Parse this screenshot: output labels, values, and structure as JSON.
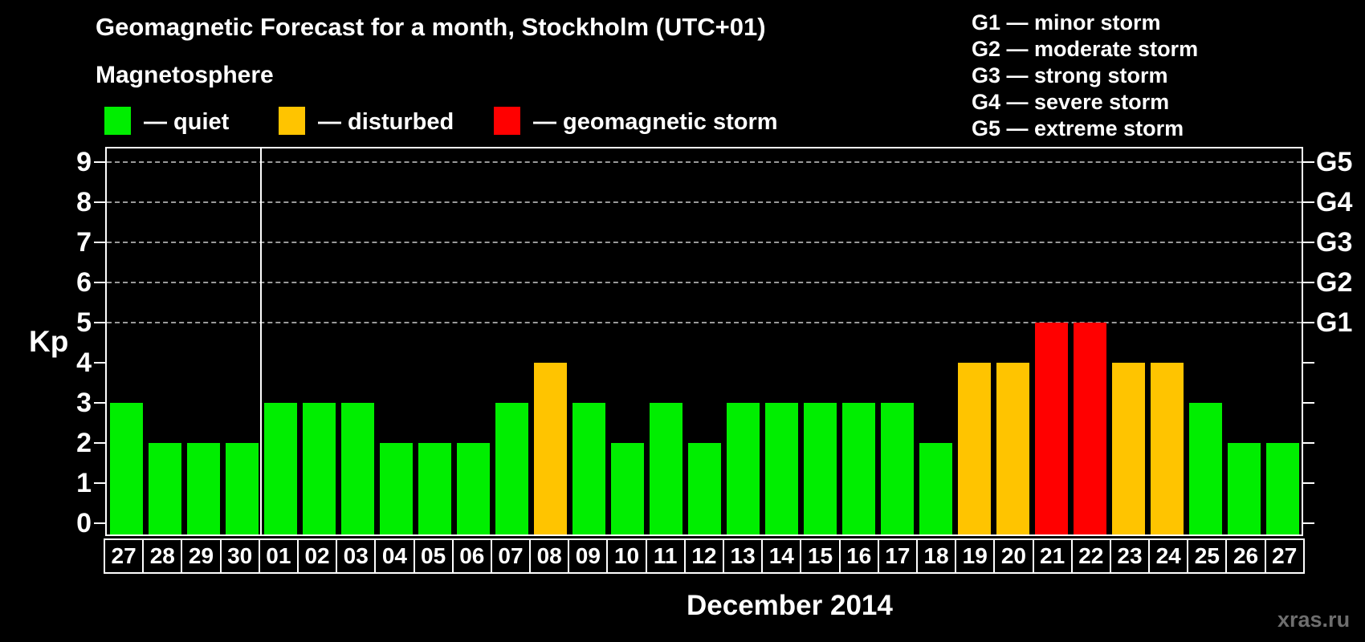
{
  "title": "Geomagnetic Forecast for a month, Stockholm (UTC+01)",
  "subtitle": "Magnetosphere",
  "legend": {
    "items": [
      {
        "key": "quiet",
        "label": "— quiet"
      },
      {
        "key": "disturbed",
        "label": "— disturbed"
      },
      {
        "key": "storm",
        "label": "— geomagnetic storm"
      }
    ]
  },
  "g_scale_legend": [
    "G1 — minor storm",
    "G2 — moderate storm",
    "G3 — strong storm",
    "G4 — severe storm",
    "G5 — extreme storm"
  ],
  "axes": {
    "y_label": "Kp",
    "y_ticks": [
      9,
      8,
      7,
      6,
      5,
      4,
      3,
      2,
      1,
      0
    ],
    "right_axis_labels": [
      {
        "kp": 9,
        "label": "G5"
      },
      {
        "kp": 8,
        "label": "G4"
      },
      {
        "kp": 7,
        "label": "G3"
      },
      {
        "kp": 6,
        "label": "G2"
      },
      {
        "kp": 5,
        "label": "G1"
      }
    ],
    "x_axis_title": "December 2014"
  },
  "watermark": "xras.ru",
  "colors": {
    "quiet": "#00ee00",
    "disturbed": "#ffc400",
    "storm": "#ff0000",
    "background": "#000000",
    "grid": "#9a9a9a",
    "axis": "#ffffff"
  },
  "chart_data": {
    "type": "bar",
    "title": "Geomagnetic Forecast for a month, Stockholm (UTC+01)",
    "xlabel": "December 2014",
    "ylabel": "Kp",
    "ylim": [
      0,
      9
    ],
    "grid": "dashed horizontal at Kp 5-9 only",
    "legend_position": "top-left",
    "categories": [
      "27",
      "28",
      "29",
      "30",
      "01",
      "02",
      "03",
      "04",
      "05",
      "06",
      "07",
      "08",
      "09",
      "10",
      "11",
      "12",
      "13",
      "14",
      "15",
      "16",
      "17",
      "18",
      "19",
      "20",
      "21",
      "22",
      "23",
      "24",
      "25",
      "26",
      "27"
    ],
    "values": [
      3,
      2,
      2,
      2,
      3,
      3,
      3,
      2,
      2,
      2,
      3,
      4,
      3,
      2,
      3,
      2,
      3,
      3,
      3,
      3,
      3,
      2,
      4,
      4,
      5,
      5,
      4,
      4,
      3,
      2,
      2
    ],
    "statuses": [
      "quiet",
      "quiet",
      "quiet",
      "quiet",
      "quiet",
      "quiet",
      "quiet",
      "quiet",
      "quiet",
      "quiet",
      "quiet",
      "disturbed",
      "quiet",
      "quiet",
      "quiet",
      "quiet",
      "quiet",
      "quiet",
      "quiet",
      "quiet",
      "quiet",
      "quiet",
      "disturbed",
      "disturbed",
      "storm",
      "storm",
      "disturbed",
      "disturbed",
      "quiet",
      "quiet",
      "quiet"
    ],
    "gridlines_at": [
      5,
      6,
      7,
      8,
      9
    ],
    "month_separator_after_index": 3
  }
}
